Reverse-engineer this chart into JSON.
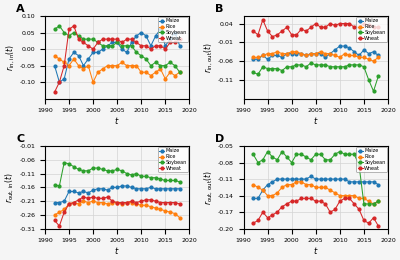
{
  "years": [
    1992,
    1993,
    1994,
    1995,
    1996,
    1997,
    1998,
    1999,
    2000,
    2001,
    2002,
    2003,
    2004,
    2005,
    2006,
    2007,
    2008,
    2009,
    2010,
    2011,
    2012,
    2013,
    2014,
    2015,
    2016,
    2017,
    2018
  ],
  "A": {
    "Maize": [
      -0.05,
      -0.1,
      -0.09,
      -0.03,
      -0.01,
      -0.02,
      -0.05,
      -0.03,
      -0.01,
      -0.01,
      0.0,
      0.01,
      0.02,
      0.02,
      0.0,
      -0.01,
      0.02,
      0.04,
      0.05,
      0.04,
      0.01,
      0.04,
      0.06,
      0.01,
      0.03,
      0.05,
      0.01
    ],
    "Rice": [
      -0.02,
      -0.03,
      -0.04,
      -0.05,
      -0.03,
      -0.05,
      -0.06,
      -0.05,
      -0.1,
      -0.07,
      -0.06,
      -0.05,
      -0.05,
      -0.05,
      -0.04,
      -0.05,
      -0.05,
      -0.05,
      -0.07,
      -0.07,
      -0.08,
      -0.07,
      -0.06,
      -0.09,
      -0.07,
      -0.08,
      -0.07
    ],
    "Soybean": [
      0.06,
      0.07,
      0.05,
      0.04,
      0.05,
      0.04,
      0.03,
      0.03,
      0.03,
      0.02,
      0.01,
      0.01,
      0.01,
      0.02,
      0.01,
      0.01,
      0.01,
      -0.01,
      -0.02,
      -0.03,
      -0.05,
      -0.04,
      -0.05,
      -0.05,
      -0.04,
      -0.05,
      -0.07
    ],
    "Wheat": [
      -0.13,
      -0.1,
      -0.05,
      0.06,
      0.07,
      0.03,
      0.02,
      0.01,
      0.0,
      0.02,
      0.03,
      0.03,
      0.03,
      0.03,
      0.02,
      0.03,
      0.03,
      0.02,
      0.01,
      0.01,
      0.0,
      0.01,
      0.01,
      0.0,
      0.02,
      0.02,
      0.03
    ]
  },
  "B": {
    "Maize": [
      -0.055,
      -0.055,
      -0.045,
      -0.055,
      -0.045,
      -0.045,
      -0.05,
      -0.04,
      -0.04,
      -0.04,
      -0.04,
      -0.045,
      -0.04,
      -0.04,
      -0.04,
      -0.05,
      -0.04,
      -0.03,
      -0.02,
      -0.02,
      -0.025,
      -0.035,
      -0.045,
      -0.03,
      -0.04,
      -0.035,
      -0.045
    ],
    "Rice": [
      -0.05,
      -0.05,
      -0.045,
      -0.04,
      -0.04,
      -0.035,
      -0.04,
      -0.04,
      -0.035,
      -0.035,
      -0.04,
      -0.045,
      -0.04,
      -0.04,
      -0.035,
      -0.04,
      -0.04,
      -0.045,
      -0.05,
      -0.04,
      -0.045,
      -0.045,
      -0.05,
      -0.05,
      -0.055,
      -0.06,
      -0.05
    ],
    "Soybean": [
      -0.09,
      -0.095,
      -0.075,
      -0.08,
      -0.08,
      -0.08,
      -0.085,
      -0.075,
      -0.075,
      -0.07,
      -0.07,
      -0.075,
      -0.065,
      -0.07,
      -0.07,
      -0.07,
      -0.075,
      -0.075,
      -0.075,
      -0.075,
      -0.07,
      -0.07,
      -0.07,
      -0.075,
      -0.11,
      -0.14,
      -0.1
    ],
    "Wheat": [
      0.02,
      0.01,
      0.05,
      0.02,
      0.005,
      0.01,
      0.02,
      0.03,
      0.01,
      0.01,
      0.025,
      0.02,
      0.03,
      0.04,
      0.03,
      0.03,
      0.04,
      0.035,
      0.04,
      0.04,
      0.04,
      0.03,
      0.03,
      0.04,
      0.035,
      0.03,
      0.03
    ]
  },
  "C": {
    "Maize": [
      -0.215,
      -0.215,
      -0.21,
      -0.175,
      -0.175,
      -0.18,
      -0.175,
      -0.18,
      -0.17,
      -0.165,
      -0.165,
      -0.17,
      -0.16,
      -0.16,
      -0.155,
      -0.155,
      -0.16,
      -0.165,
      -0.165,
      -0.165,
      -0.16,
      -0.165,
      -0.165,
      -0.165,
      -0.165,
      -0.165,
      -0.165
    ],
    "Rice": [
      -0.26,
      -0.25,
      -0.24,
      -0.22,
      -0.215,
      -0.22,
      -0.21,
      -0.215,
      -0.21,
      -0.215,
      -0.215,
      -0.22,
      -0.215,
      -0.215,
      -0.22,
      -0.215,
      -0.215,
      -0.22,
      -0.225,
      -0.225,
      -0.23,
      -0.235,
      -0.24,
      -0.245,
      -0.25,
      -0.255,
      -0.27
    ],
    "Soybean": [
      -0.15,
      -0.155,
      -0.07,
      -0.075,
      -0.085,
      -0.095,
      -0.1,
      -0.1,
      -0.09,
      -0.09,
      -0.095,
      -0.1,
      -0.1,
      -0.095,
      -0.1,
      -0.11,
      -0.115,
      -0.11,
      -0.12,
      -0.12,
      -0.125,
      -0.125,
      -0.13,
      -0.135,
      -0.135,
      -0.135,
      -0.14
    ],
    "Wheat": [
      -0.28,
      -0.3,
      -0.25,
      -0.22,
      -0.215,
      -0.205,
      -0.195,
      -0.2,
      -0.195,
      -0.2,
      -0.2,
      -0.195,
      -0.21,
      -0.215,
      -0.215,
      -0.215,
      -0.21,
      -0.215,
      -0.21,
      -0.205,
      -0.205,
      -0.21,
      -0.215,
      -0.215,
      -0.215,
      -0.215,
      -0.22
    ]
  },
  "D": {
    "Maize": [
      -0.145,
      -0.145,
      -0.13,
      -0.12,
      -0.115,
      -0.11,
      -0.11,
      -0.11,
      -0.11,
      -0.11,
      -0.11,
      -0.11,
      -0.105,
      -0.11,
      -0.11,
      -0.11,
      -0.11,
      -0.11,
      -0.11,
      -0.11,
      -0.115,
      -0.115,
      -0.115,
      -0.115,
      -0.115,
      -0.115,
      -0.12
    ],
    "Rice": [
      -0.12,
      -0.125,
      -0.13,
      -0.14,
      -0.14,
      -0.135,
      -0.125,
      -0.12,
      -0.12,
      -0.115,
      -0.115,
      -0.12,
      -0.12,
      -0.125,
      -0.125,
      -0.125,
      -0.13,
      -0.135,
      -0.14,
      -0.14,
      -0.14,
      -0.14,
      -0.145,
      -0.145,
      -0.15,
      -0.155,
      -0.15
    ],
    "Soybean": [
      -0.065,
      -0.08,
      -0.075,
      -0.06,
      -0.07,
      -0.075,
      -0.06,
      -0.07,
      -0.08,
      -0.065,
      -0.065,
      -0.07,
      -0.075,
      -0.065,
      -0.065,
      -0.075,
      -0.075,
      -0.065,
      -0.06,
      -0.065,
      -0.065,
      -0.065,
      -0.085,
      -0.155,
      -0.155,
      -0.155,
      -0.15
    ],
    "Wheat": [
      -0.19,
      -0.185,
      -0.17,
      -0.18,
      -0.175,
      -0.17,
      -0.16,
      -0.155,
      -0.15,
      -0.15,
      -0.145,
      -0.145,
      -0.145,
      -0.15,
      -0.15,
      -0.155,
      -0.17,
      -0.165,
      -0.15,
      -0.145,
      -0.145,
      -0.155,
      -0.165,
      -0.185,
      -0.19,
      -0.18,
      -0.195
    ]
  },
  "colors": {
    "Maize": "#1f77b4",
    "Rice": "#ff7f0e",
    "Soybean": "#2ca02c",
    "Wheat": "#d62728"
  },
  "ylims": {
    "A": [
      -0.15,
      0.1
    ],
    "B": [
      -0.16,
      0.06
    ],
    "C": [
      -0.31,
      -0.01
    ],
    "D": [
      -0.2,
      -0.05
    ]
  },
  "yticks": {
    "A": [
      -0.1,
      -0.05,
      0.0,
      0.05,
      0.1
    ],
    "B": [
      -0.11,
      -0.06,
      -0.01,
      0.04
    ],
    "C": [
      -0.31,
      -0.26,
      -0.21,
      -0.16,
      -0.11,
      -0.06,
      -0.01
    ],
    "D": [
      -0.2,
      -0.17,
      -0.14,
      -0.11,
      -0.08,
      -0.05
    ]
  },
  "ylabels": {
    "A": "$r_{\\mathrm{in,\\,in}}(t)$",
    "B": "$r_{\\mathrm{in,\\,out}}(t)$",
    "C": "$r_{\\mathrm{out,\\,in}}(t)$",
    "D": "$r_{\\mathrm{out,\\,out}}(t)$"
  },
  "panel_labels": [
    "A",
    "B",
    "C",
    "D"
  ],
  "crops": [
    "Maize",
    "Rice",
    "Soybean",
    "Wheat"
  ],
  "background_color": "#f5f5f5"
}
